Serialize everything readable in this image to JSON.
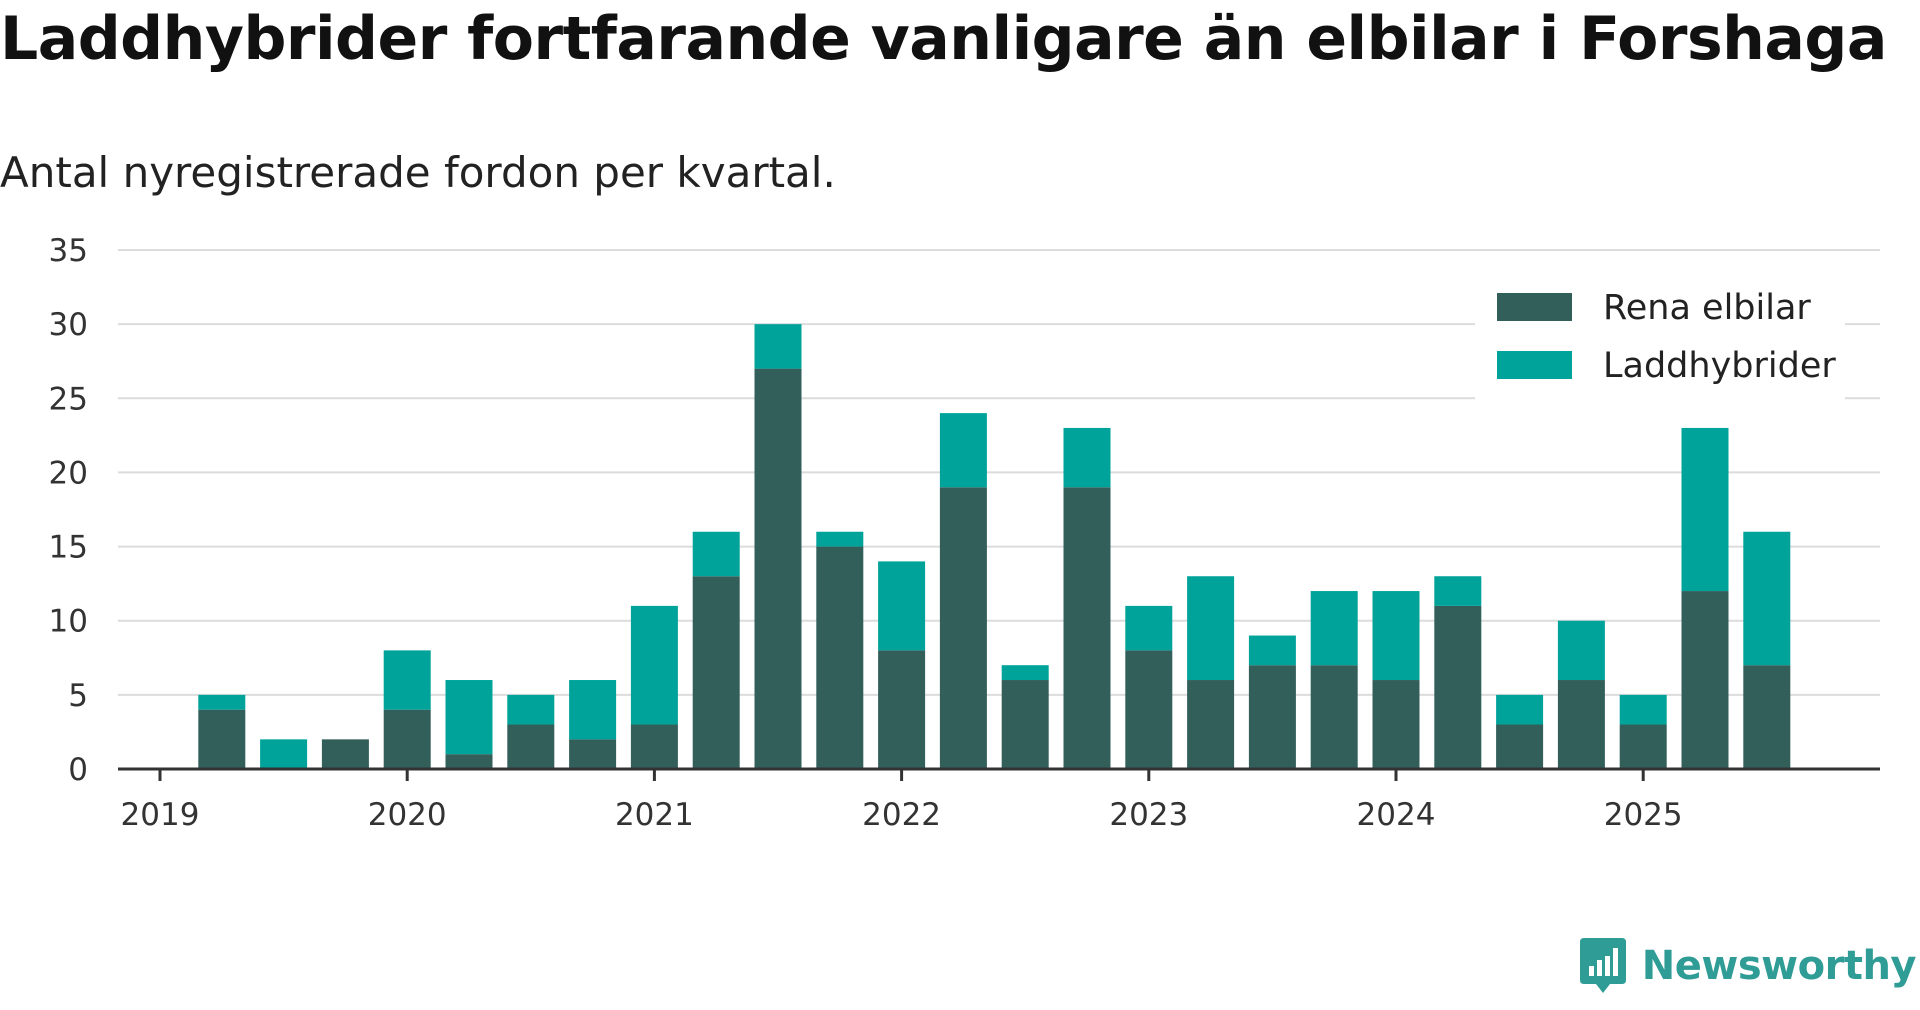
{
  "header": {
    "title": "Laddhybrider fortfarande vanligare än elbilar i Forshaga",
    "subtitle": "Antal nyregistrerade fordon per kvartal."
  },
  "brand": {
    "name": "Newsworthy",
    "icon": "newsworthy-logo-icon"
  },
  "colors": {
    "rena_elbilar": "#335f5b",
    "laddhybrider": "#00a39a",
    "grid": "#dcdcdc",
    "axis": "#333333",
    "brand": "#2f9c96"
  },
  "chart_data": {
    "type": "bar",
    "stacked": true,
    "title": "Laddhybrider fortfarande vanligare än elbilar i Forshaga",
    "subtitle": "Antal nyregistrerade fordon per kvartal.",
    "xlabel": "",
    "ylabel": "",
    "ylim": [
      0,
      35
    ],
    "yticks": [
      0,
      5,
      10,
      15,
      20,
      25,
      30,
      35
    ],
    "xticks": [
      "2019",
      "2020",
      "2021",
      "2022",
      "2023",
      "2024",
      "2025"
    ],
    "grid": true,
    "legend_position": "top-right",
    "categories": [
      "2019 Q1",
      "2019 Q2",
      "2019 Q3",
      "2019 Q4",
      "2020 Q1",
      "2020 Q2",
      "2020 Q3",
      "2020 Q4",
      "2021 Q1",
      "2021 Q2",
      "2021 Q3",
      "2021 Q4",
      "2022 Q1",
      "2022 Q2",
      "2022 Q3",
      "2022 Q4",
      "2023 Q1",
      "2023 Q2",
      "2023 Q3",
      "2023 Q4",
      "2024 Q1",
      "2024 Q2",
      "2024 Q3",
      "2024 Q4",
      "2025 Q1",
      "2025 Q2",
      "2025 Q3"
    ],
    "series": [
      {
        "name": "Rena elbilar",
        "values": [
          0,
          4,
          0,
          2,
          4,
          1,
          3,
          2,
          3,
          13,
          27,
          15,
          8,
          19,
          6,
          19,
          8,
          6,
          7,
          7,
          6,
          11,
          3,
          6,
          3,
          12,
          7
        ]
      },
      {
        "name": "Laddhybrider",
        "values": [
          0,
          1,
          2,
          0,
          4,
          5,
          2,
          4,
          8,
          3,
          3,
          1,
          6,
          5,
          1,
          4,
          3,
          7,
          2,
          5,
          6,
          2,
          2,
          4,
          2,
          11,
          9
        ]
      }
    ]
  }
}
